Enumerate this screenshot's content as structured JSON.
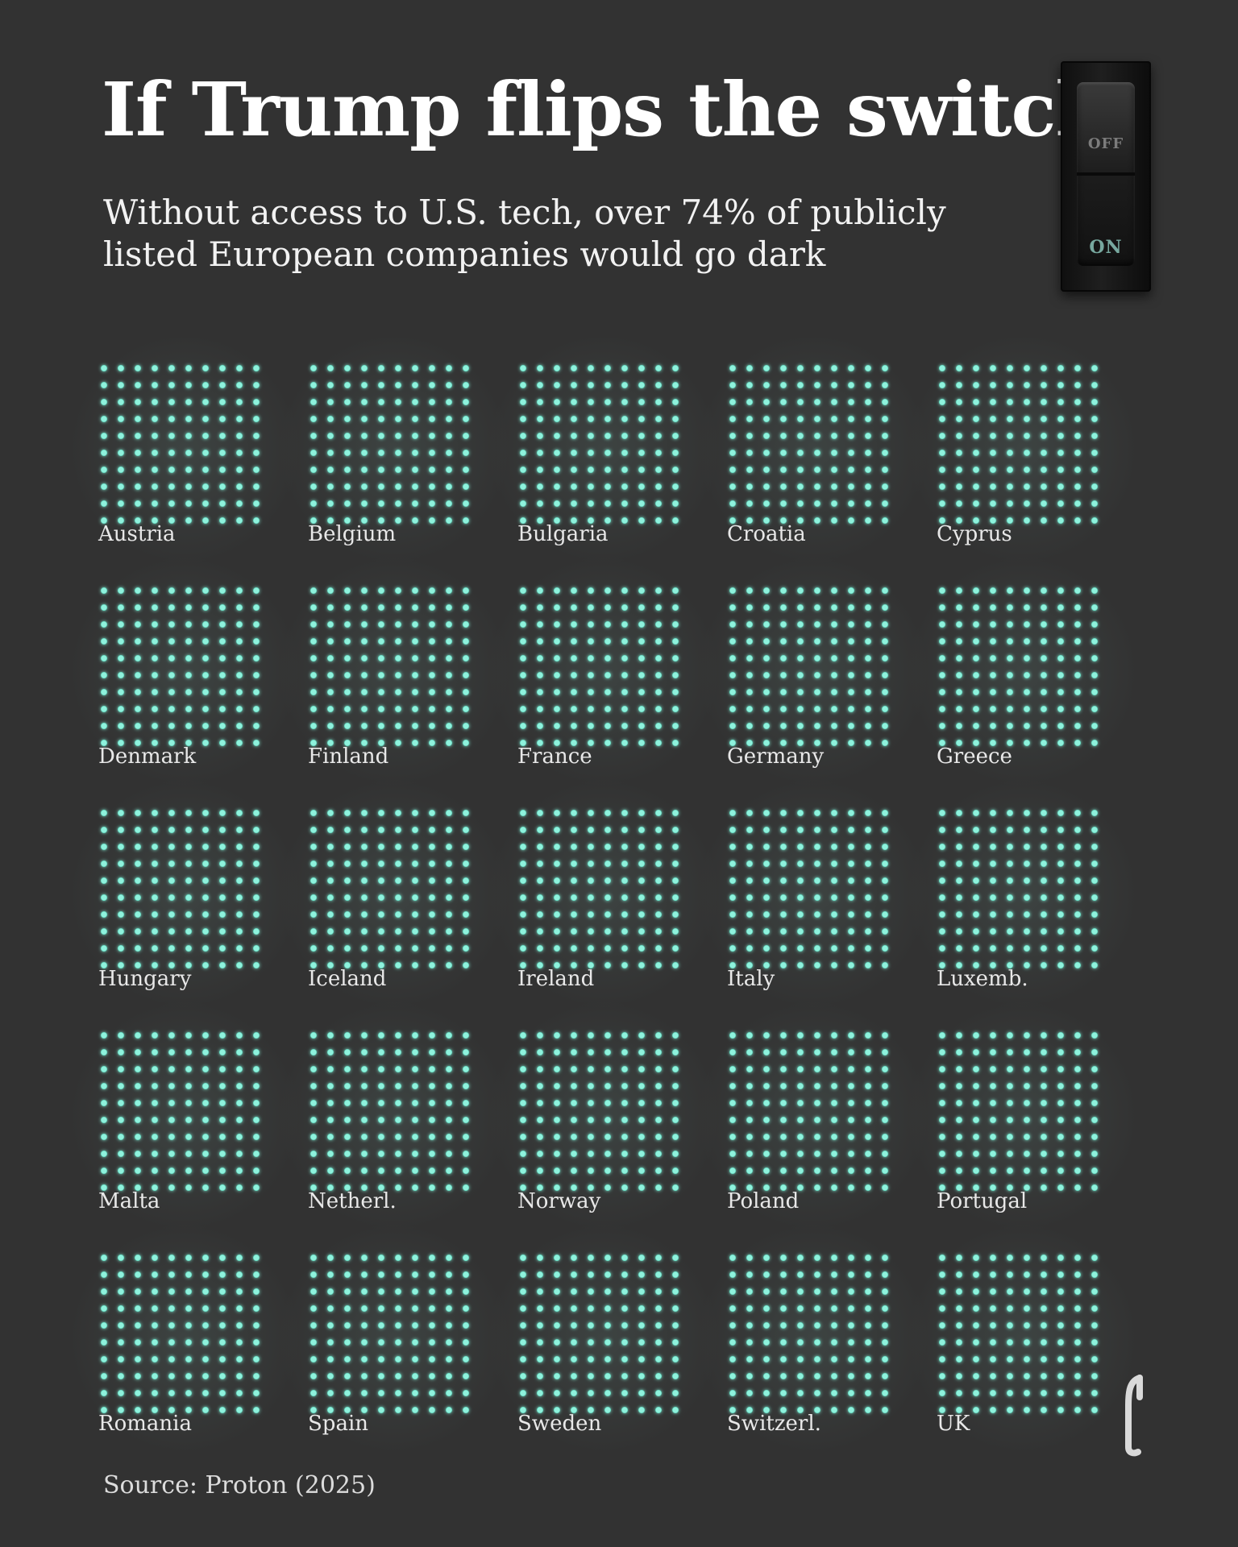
{
  "title": "If Trump flips the switch",
  "subtitle": "Without access to U.S. tech, over 74% of publicly listed European companies would go dark",
  "switch": {
    "off_label": "OFF",
    "on_label": "ON"
  },
  "source": "Source: Proton (2025)",
  "logo_icon": "brand-logo-icon",
  "colors": {
    "background": "#323232",
    "dot": "#8ff2dd",
    "dot_glow": "#5fd6bd"
  },
  "chart_data": {
    "type": "waffle",
    "dots_per_grid": 100,
    "grid_rows": 10,
    "grid_cols": 10,
    "categories": [
      "Austria",
      "Belgium",
      "Bulgaria",
      "Croatia",
      "Cyprus",
      "Denmark",
      "Finland",
      "France",
      "Germany",
      "Greece",
      "Hungary",
      "Iceland",
      "Ireland",
      "Italy",
      "Luxemb.",
      "Malta",
      "Netherl.",
      "Norway",
      "Poland",
      "Portugal",
      "Romania",
      "Spain",
      "Sweden",
      "Switzerl.",
      "UK"
    ],
    "values": [
      100,
      100,
      100,
      100,
      100,
      100,
      100,
      100,
      100,
      100,
      100,
      100,
      100,
      100,
      100,
      100,
      100,
      100,
      100,
      100,
      100,
      100,
      100,
      100,
      100
    ]
  }
}
